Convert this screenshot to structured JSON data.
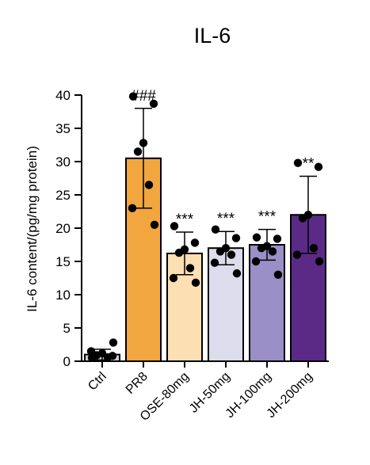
{
  "chart_data": {
    "type": "bar",
    "title": "IL-6",
    "xlabel": "",
    "ylabel": "IL-6 content/(pg/mg protein)",
    "ylim": [
      0,
      40
    ],
    "yticks": [
      0,
      5,
      10,
      15,
      20,
      25,
      30,
      35,
      40
    ],
    "grid": false,
    "categories": [
      "Ctrl",
      "PR8",
      "OSE-80mg",
      "JH-50mg",
      "JH-100mg",
      "JH-200mg"
    ],
    "values": [
      1.0,
      30.5,
      16.2,
      17.0,
      17.5,
      22.0
    ],
    "error": [
      0.8,
      7.5,
      3.2,
      2.5,
      2.3,
      5.8
    ],
    "significance": [
      "",
      "###",
      "***",
      "***",
      "***",
      "**"
    ],
    "colors": [
      "#cccccc",
      "#f2a63f",
      "#fddfb4",
      "#dcdcec",
      "#9a8fc6",
      "#5b2a86"
    ],
    "points": [
      [
        0.5,
        0.8,
        1.2,
        0.9,
        0.6,
        1.5,
        2.8
      ],
      [
        39.8,
        38.7,
        32.8,
        31.5,
        26.5,
        23.0,
        20.5
      ],
      [
        20.3,
        17.8,
        16.8,
        16.3,
        14.0,
        12.5,
        11.8
      ],
      [
        19.8,
        18.5,
        17.0,
        16.5,
        16.0,
        14.8,
        13.2
      ],
      [
        18.6,
        18.4,
        17.3,
        17.0,
        16.5,
        15.0,
        13.0
      ],
      [
        29.8,
        29.2,
        22.0,
        21.5,
        17.0,
        16.0,
        15.0
      ]
    ]
  }
}
